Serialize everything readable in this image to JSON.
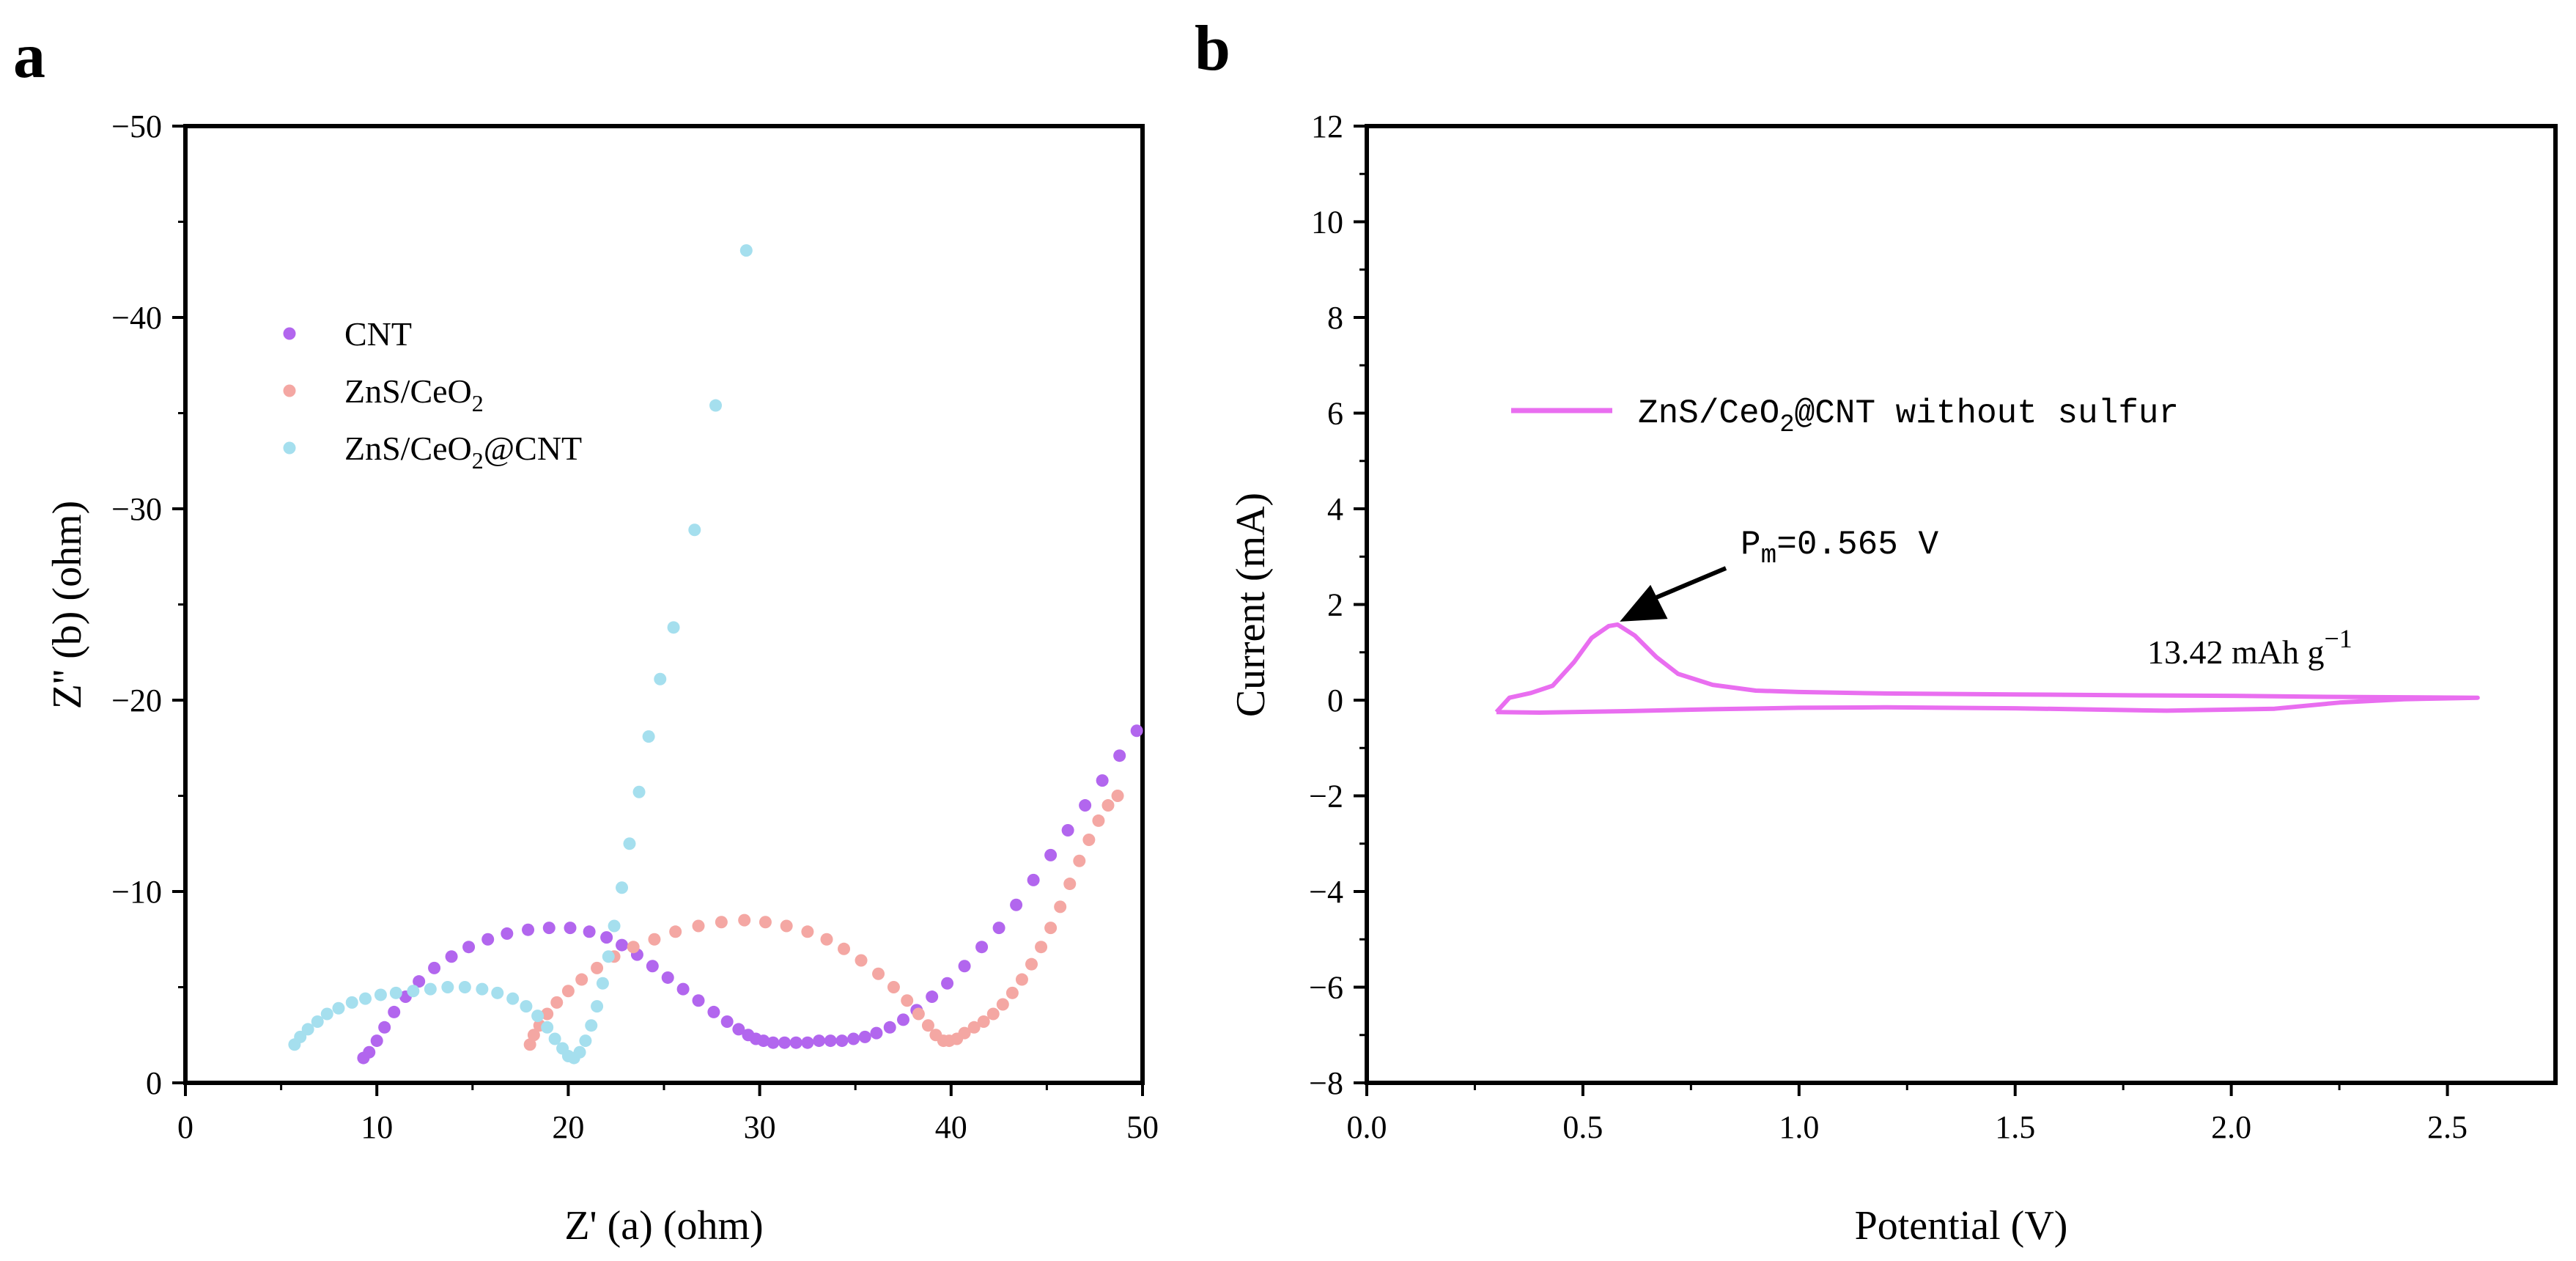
{
  "chart_data": [
    {
      "panel": "a",
      "type": "scatter",
      "xlabel": "Z' (a) (ohm)",
      "ylabel": "Z'' (b) (ohm)",
      "xlim": [
        0,
        50
      ],
      "ylim": [
        0,
        -50
      ],
      "xticks": [
        0,
        10,
        20,
        30,
        40,
        50
      ],
      "yticks": [
        0,
        -10,
        -20,
        -30,
        -40,
        -50
      ],
      "legend_position": "upper-left",
      "series": [
        {
          "name": "CNT",
          "name_base": "CNT",
          "name_sub": "",
          "name_suffix": "",
          "color": "#b266ee",
          "x": [
            9.3,
            9.6,
            10.0,
            10.4,
            10.9,
            11.5,
            12.2,
            13.0,
            13.9,
            14.8,
            15.8,
            16.8,
            17.9,
            19.0,
            20.1,
            21.1,
            22.0,
            22.8,
            23.6,
            24.4,
            25.2,
            26.0,
            26.8,
            27.6,
            28.3,
            28.9,
            29.4,
            29.8,
            30.2,
            30.7,
            31.3,
            31.9,
            32.5,
            33.1,
            33.7,
            34.3,
            34.9,
            35.5,
            36.1,
            36.8,
            37.5,
            38.2,
            39.0,
            39.8,
            40.7,
            41.6,
            42.5,
            43.4,
            44.3,
            45.2,
            46.1,
            47.0,
            47.9,
            48.8,
            49.7
          ],
          "y": [
            -1.3,
            -1.6,
            -2.2,
            -2.9,
            -3.7,
            -4.5,
            -5.3,
            -6.0,
            -6.6,
            -7.1,
            -7.5,
            -7.8,
            -8.0,
            -8.1,
            -8.1,
            -7.9,
            -7.6,
            -7.2,
            -6.7,
            -6.1,
            -5.5,
            -4.9,
            -4.3,
            -3.7,
            -3.2,
            -2.8,
            -2.5,
            -2.3,
            -2.2,
            -2.1,
            -2.1,
            -2.1,
            -2.1,
            -2.2,
            -2.2,
            -2.2,
            -2.3,
            -2.4,
            -2.6,
            -2.9,
            -3.3,
            -3.8,
            -4.5,
            -5.2,
            -6.1,
            -7.1,
            -8.1,
            -9.3,
            -10.6,
            -11.9,
            -13.2,
            -14.5,
            -15.8,
            -17.1,
            -18.4
          ]
        },
        {
          "name": "ZnS/CeO2",
          "name_base": "ZnS/CeO",
          "name_sub": "2",
          "name_suffix": "",
          "color": "#f4a7a3",
          "x": [
            18.0,
            18.2,
            18.5,
            18.9,
            19.4,
            20.0,
            20.7,
            21.5,
            22.4,
            23.4,
            24.5,
            25.6,
            26.8,
            28.0,
            29.2,
            30.3,
            31.4,
            32.5,
            33.5,
            34.4,
            35.3,
            36.2,
            37.0,
            37.7,
            38.3,
            38.8,
            39.2,
            39.6,
            39.9,
            40.3,
            40.7,
            41.2,
            41.7,
            42.2,
            42.7,
            43.2,
            43.7,
            44.2,
            44.7,
            45.2,
            45.7,
            46.2,
            46.7,
            47.2,
            47.7,
            48.2,
            48.7
          ],
          "y": [
            -2.0,
            -2.5,
            -3.0,
            -3.6,
            -4.2,
            -4.8,
            -5.4,
            -6.0,
            -6.6,
            -7.1,
            -7.5,
            -7.9,
            -8.2,
            -8.4,
            -8.5,
            -8.4,
            -8.2,
            -7.9,
            -7.5,
            -7.0,
            -6.4,
            -5.7,
            -5.0,
            -4.3,
            -3.6,
            -3.0,
            -2.5,
            -2.2,
            -2.2,
            -2.3,
            -2.6,
            -2.9,
            -3.2,
            -3.6,
            -4.1,
            -4.7,
            -5.4,
            -6.2,
            -7.1,
            -8.1,
            -9.2,
            -10.4,
            -11.6,
            -12.7,
            -13.7,
            -14.5,
            -15.0
          ]
        },
        {
          "name": "ZnS/CeO2@CNT",
          "name_base": "ZnS/CeO",
          "name_sub": "2",
          "name_suffix": "@CNT",
          "color": "#a5dfee",
          "x": [
            5.7,
            6.0,
            6.4,
            6.9,
            7.4,
            8.0,
            8.7,
            9.4,
            10.2,
            11.0,
            11.9,
            12.8,
            13.7,
            14.6,
            15.5,
            16.3,
            17.1,
            17.8,
            18.4,
            18.9,
            19.3,
            19.7,
            20.0,
            20.3,
            20.6,
            20.9,
            21.2,
            21.5,
            21.8,
            22.1,
            22.4,
            22.8,
            23.2,
            23.7,
            24.2,
            24.8,
            25.5,
            26.6,
            27.7,
            29.3
          ],
          "y": [
            -2.0,
            -2.4,
            -2.8,
            -3.2,
            -3.6,
            -3.9,
            -4.2,
            -4.4,
            -4.6,
            -4.7,
            -4.8,
            -4.9,
            -5.0,
            -5.0,
            -4.9,
            -4.7,
            -4.4,
            -4.0,
            -3.5,
            -2.9,
            -2.3,
            -1.8,
            -1.4,
            -1.3,
            -1.6,
            -2.2,
            -3.0,
            -4.0,
            -5.2,
            -6.6,
            -8.2,
            -10.2,
            -12.5,
            -15.2,
            -18.1,
            -21.1,
            -23.8,
            -28.9,
            -35.4,
            -43.5
          ]
        }
      ]
    },
    {
      "panel": "b",
      "type": "line",
      "xlabel": "Potential (V)",
      "ylabel": "Current (mA)",
      "xlim": [
        0,
        2.75
      ],
      "ylim": [
        -8,
        12
      ],
      "xticks": [
        "0.0",
        "0.5",
        "1.0",
        "1.5",
        "2.0",
        "2.5"
      ],
      "yticks": [
        "12",
        "10",
        "8",
        "6",
        "4",
        "2",
        "0",
        "−2",
        "−4",
        "−6",
        "−8"
      ],
      "legend_position": "upper-center",
      "series": [
        {
          "name": "ZnS/CeO2@CNT without sulfur",
          "name_base": "ZnS/CeO",
          "name_sub": "2",
          "name_suffix": "@CNT without sulfur",
          "color": "#e96ef0",
          "x": [
            0.3,
            0.33,
            0.38,
            0.43,
            0.48,
            0.52,
            0.56,
            0.58,
            0.62,
            0.67,
            0.72,
            0.8,
            0.9,
            1.0,
            1.2,
            1.5,
            1.8,
            2.0,
            2.2,
            2.4,
            2.57,
            2.4,
            2.25,
            2.1,
            1.85,
            1.5,
            1.2,
            1.0,
            0.8,
            0.6,
            0.4,
            0.3
          ],
          "y": [
            -0.25,
            0.05,
            0.15,
            0.3,
            0.8,
            1.3,
            1.55,
            1.58,
            1.35,
            0.9,
            0.55,
            0.32,
            0.2,
            0.17,
            0.14,
            0.12,
            0.1,
            0.09,
            0.07,
            0.06,
            0.05,
            0.02,
            -0.05,
            -0.18,
            -0.22,
            -0.17,
            -0.15,
            -0.16,
            -0.19,
            -0.23,
            -0.26,
            -0.25
          ]
        }
      ],
      "annotations": [
        {
          "text_base": "P",
          "text_sub": "m",
          "text_suffix": "=0.565 V",
          "arrow_to": [
            0.565,
            1.58
          ]
        },
        {
          "text_base": "13.42 mAh g",
          "text_sup": "−1"
        }
      ]
    }
  ]
}
